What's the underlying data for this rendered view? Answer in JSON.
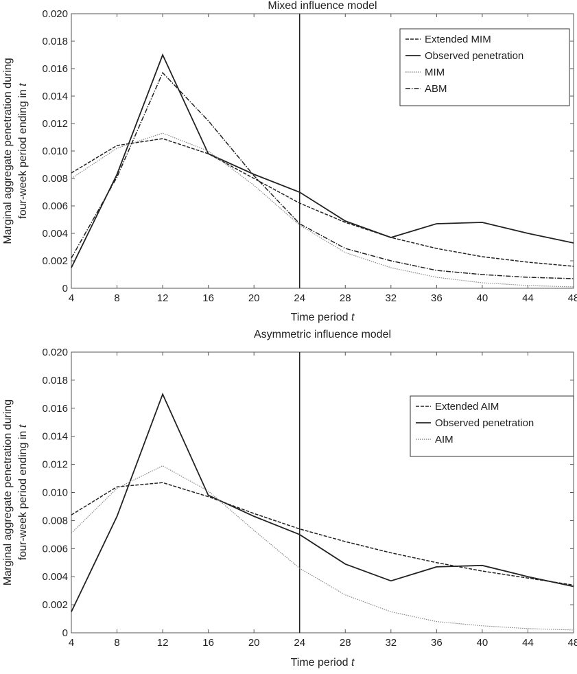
{
  "chart_data": [
    {
      "type": "line",
      "title": "Mixed influence model",
      "xlabel": "Time period t",
      "ylabel": [
        "Marginal aggregate penetration during",
        "four-week period ending in t"
      ],
      "x": [
        4,
        8,
        12,
        16,
        20,
        24,
        28,
        32,
        36,
        40,
        44,
        48
      ],
      "xlim": [
        4,
        48
      ],
      "ylim": [
        0,
        0.02
      ],
      "yticks": [
        "0",
        "0.002",
        "0.004",
        "0.006",
        "0.008",
        "0.010",
        "0.012",
        "0.014",
        "0.016",
        "0.018",
        "0.020"
      ],
      "vertical_line_x": 24,
      "legend_position": "top-right",
      "series": [
        {
          "name": "Extended MIM",
          "style": "dashed",
          "color": "#222222",
          "values": [
            0.0084,
            0.0104,
            0.0109,
            0.0098,
            0.008,
            0.0062,
            0.0048,
            0.0037,
            0.0029,
            0.0023,
            0.0019,
            0.0016
          ]
        },
        {
          "name": "Observed penetration",
          "style": "solid",
          "color": "#222222",
          "values": [
            0.0015,
            0.0083,
            0.017,
            0.0098,
            0.0083,
            0.007,
            0.0049,
            0.0037,
            0.0047,
            0.0048,
            0.004,
            0.0033
          ]
        },
        {
          "name": "MIM",
          "style": "dotted",
          "color": "#888888",
          "values": [
            0.008,
            0.0102,
            0.0113,
            0.01,
            0.0075,
            0.0046,
            0.0026,
            0.0015,
            0.0008,
            0.0004,
            0.0002,
            0.0001
          ]
        },
        {
          "name": "ABM",
          "style": "dashdot",
          "color": "#222222",
          "values": [
            0.0022,
            0.0081,
            0.0157,
            0.0122,
            0.0082,
            0.0047,
            0.0029,
            0.002,
            0.0013,
            0.001,
            0.0008,
            0.0007
          ]
        }
      ]
    },
    {
      "type": "line",
      "title": "Asymmetric influence model",
      "xlabel": "Time period t",
      "ylabel": [
        "Marginal aggregate penetration during",
        "four-week period ending in t"
      ],
      "x": [
        4,
        8,
        12,
        16,
        20,
        24,
        28,
        32,
        36,
        40,
        44,
        48
      ],
      "xlim": [
        4,
        48
      ],
      "ylim": [
        0,
        0.02
      ],
      "yticks": [
        "0",
        "0.002",
        "0.004",
        "0.006",
        "0.008",
        "0.010",
        "0.012",
        "0.014",
        "0.016",
        "0.018",
        "0.020"
      ],
      "vertical_line_x": 24,
      "legend_position": "top-right",
      "series": [
        {
          "name": "Extended AIM",
          "style": "dashed",
          "color": "#222222",
          "values": [
            0.0084,
            0.0104,
            0.0107,
            0.0097,
            0.0085,
            0.0074,
            0.0065,
            0.0057,
            0.005,
            0.0044,
            0.0039,
            0.0034
          ]
        },
        {
          "name": "Observed penetration",
          "style": "solid",
          "color": "#222222",
          "values": [
            0.0015,
            0.0083,
            0.017,
            0.0098,
            0.0083,
            0.007,
            0.0049,
            0.0037,
            0.0047,
            0.0048,
            0.004,
            0.0033
          ]
        },
        {
          "name": "AIM",
          "style": "dotted",
          "color": "#888888",
          "values": [
            0.0071,
            0.0103,
            0.0119,
            0.0101,
            0.0073,
            0.0046,
            0.0027,
            0.0015,
            0.0008,
            0.0005,
            0.0003,
            0.0002
          ]
        }
      ]
    }
  ]
}
